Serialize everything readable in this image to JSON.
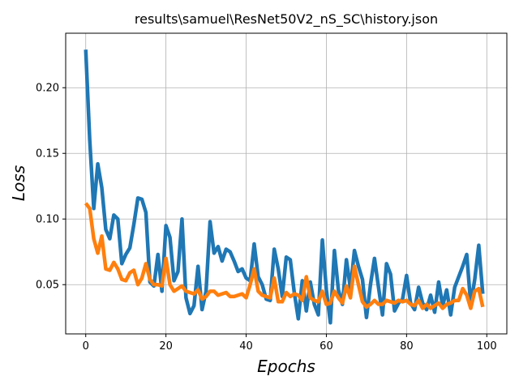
{
  "chart_data": {
    "type": "line",
    "title": "results\\samuel\\ResNet50V2_nS_SC\\history.json",
    "xlabel": "Epochs",
    "ylabel": "Loss",
    "xlim": [
      -5,
      105
    ],
    "ylim": [
      0.0125,
      0.2415
    ],
    "xticks": [
      0,
      20,
      40,
      60,
      80,
      100
    ],
    "yticks": [
      0.05,
      0.1,
      0.15,
      0.2
    ],
    "xtick_labels": [
      "0",
      "20",
      "40",
      "60",
      "80",
      "100"
    ],
    "ytick_labels": [
      "0.05",
      "0.10",
      "0.15",
      "0.20"
    ],
    "grid": true,
    "legend": false,
    "series": [
      {
        "color": "#1f77b4",
        "x": [
          0,
          1,
          2,
          3,
          4,
          5,
          6,
          7,
          8,
          9,
          10,
          11,
          12,
          13,
          14,
          15,
          16,
          17,
          18,
          19,
          20,
          21,
          22,
          23,
          24,
          25,
          26,
          27,
          28,
          29,
          30,
          31,
          32,
          33,
          34,
          35,
          36,
          37,
          38,
          39,
          40,
          41,
          42,
          43,
          44,
          45,
          46,
          47,
          48,
          49,
          50,
          51,
          52,
          53,
          54,
          55,
          56,
          57,
          58,
          59,
          60,
          61,
          62,
          63,
          64,
          65,
          66,
          67,
          68,
          69,
          70,
          71,
          72,
          73,
          74,
          75,
          76,
          77,
          78,
          79,
          80,
          81,
          82,
          83,
          84,
          85,
          86,
          87,
          88,
          89,
          90,
          91,
          92,
          93,
          94,
          95,
          96,
          97,
          98,
          99
        ],
        "values": [
          0.229,
          0.16,
          0.108,
          0.142,
          0.124,
          0.092,
          0.085,
          0.103,
          0.1,
          0.066,
          0.073,
          0.078,
          0.096,
          0.116,
          0.115,
          0.105,
          0.052,
          0.049,
          0.073,
          0.045,
          0.095,
          0.086,
          0.053,
          0.06,
          0.1,
          0.04,
          0.028,
          0.034,
          0.064,
          0.031,
          0.045,
          0.098,
          0.074,
          0.079,
          0.068,
          0.077,
          0.075,
          0.068,
          0.06,
          0.062,
          0.055,
          0.053,
          0.081,
          0.056,
          0.05,
          0.039,
          0.038,
          0.077,
          0.062,
          0.041,
          0.071,
          0.069,
          0.044,
          0.024,
          0.053,
          0.03,
          0.052,
          0.035,
          0.027,
          0.084,
          0.046,
          0.021,
          0.076,
          0.046,
          0.035,
          0.069,
          0.047,
          0.076,
          0.064,
          0.054,
          0.025,
          0.05,
          0.07,
          0.048,
          0.027,
          0.066,
          0.058,
          0.03,
          0.036,
          0.039,
          0.057,
          0.036,
          0.031,
          0.048,
          0.036,
          0.031,
          0.042,
          0.029,
          0.052,
          0.034,
          0.046,
          0.027,
          0.048,
          0.056,
          0.064,
          0.073,
          0.035,
          0.054,
          0.08,
          0.043
        ]
      },
      {
        "color": "#ff7f0e",
        "x": [
          0,
          1,
          2,
          3,
          4,
          5,
          6,
          7,
          8,
          9,
          10,
          11,
          12,
          13,
          14,
          15,
          16,
          17,
          18,
          19,
          20,
          21,
          22,
          23,
          24,
          25,
          26,
          27,
          28,
          29,
          30,
          31,
          32,
          33,
          34,
          35,
          36,
          37,
          38,
          39,
          40,
          41,
          42,
          43,
          44,
          45,
          46,
          47,
          48,
          49,
          50,
          51,
          52,
          53,
          54,
          55,
          56,
          57,
          58,
          59,
          60,
          61,
          62,
          63,
          64,
          65,
          66,
          67,
          68,
          69,
          70,
          71,
          72,
          73,
          74,
          75,
          76,
          77,
          78,
          79,
          80,
          81,
          82,
          83,
          84,
          85,
          86,
          87,
          88,
          89,
          90,
          91,
          92,
          93,
          94,
          95,
          96,
          97,
          98,
          99
        ],
        "values": [
          0.112,
          0.108,
          0.085,
          0.074,
          0.087,
          0.062,
          0.061,
          0.067,
          0.062,
          0.054,
          0.053,
          0.059,
          0.061,
          0.05,
          0.055,
          0.066,
          0.054,
          0.05,
          0.05,
          0.049,
          0.07,
          0.05,
          0.045,
          0.047,
          0.049,
          0.045,
          0.044,
          0.043,
          0.046,
          0.039,
          0.041,
          0.045,
          0.045,
          0.042,
          0.043,
          0.044,
          0.041,
          0.041,
          0.042,
          0.043,
          0.04,
          0.05,
          0.062,
          0.045,
          0.042,
          0.041,
          0.04,
          0.055,
          0.037,
          0.037,
          0.044,
          0.041,
          0.043,
          0.042,
          0.038,
          0.056,
          0.04,
          0.038,
          0.037,
          0.045,
          0.035,
          0.036,
          0.045,
          0.04,
          0.036,
          0.049,
          0.04,
          0.064,
          0.05,
          0.037,
          0.033,
          0.035,
          0.038,
          0.035,
          0.035,
          0.038,
          0.037,
          0.036,
          0.038,
          0.037,
          0.038,
          0.035,
          0.034,
          0.038,
          0.032,
          0.035,
          0.032,
          0.034,
          0.036,
          0.032,
          0.035,
          0.036,
          0.038,
          0.038,
          0.047,
          0.042,
          0.032,
          0.045,
          0.047,
          0.033
        ]
      }
    ]
  }
}
